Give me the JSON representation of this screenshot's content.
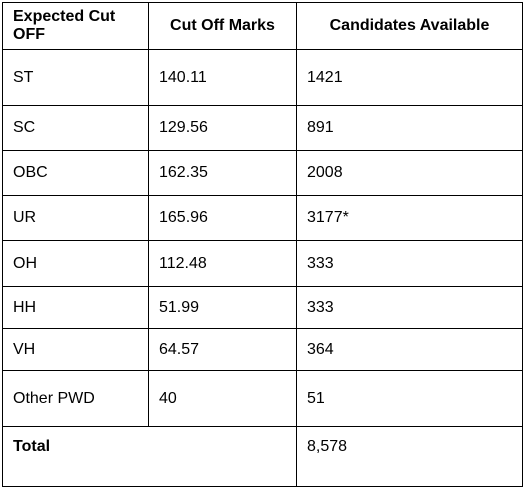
{
  "table": {
    "headers": [
      "Expected Cut OFF",
      "Cut Off Marks",
      "Candidates Available"
    ],
    "rows": [
      {
        "category": "ST",
        "marks": "140.11",
        "candidates": "1421"
      },
      {
        "category": "SC",
        "marks": "129.56",
        "candidates": "891"
      },
      {
        "category": "OBC",
        "marks": "162.35",
        "candidates": "2008"
      },
      {
        "category": "UR",
        "marks": "165.96",
        "candidates": "3177*"
      },
      {
        "category": "OH",
        "marks": "112.48",
        "candidates": "333"
      },
      {
        "category": "HH",
        "marks": "51.99",
        "candidates": "333"
      },
      {
        "category": "VH",
        "marks": "64.57",
        "candidates": "364"
      },
      {
        "category": "Other PWD",
        "marks": "40",
        "candidates": "51"
      }
    ],
    "total": {
      "label": "Total",
      "candidates": "8,578"
    }
  }
}
